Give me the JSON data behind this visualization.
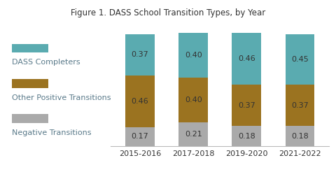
{
  "title": "Figure 1. DASS School Transition Types, by Year",
  "categories": [
    "2015-2016",
    "2017-2018",
    "2019-2020",
    "2021-2022"
  ],
  "series": {
    "Negative Transitions": [
      0.17,
      0.21,
      0.18,
      0.18
    ],
    "Other Positive Transitions": [
      0.46,
      0.4,
      0.37,
      0.37
    ],
    "DASS Completers": [
      0.37,
      0.4,
      0.46,
      0.45
    ]
  },
  "colors": {
    "Negative Transitions": "#aaaaaa",
    "Other Positive Transitions": "#9B7320",
    "DASS Completers": "#5AABB0"
  },
  "legend_order": [
    "DASS Completers",
    "Other Positive Transitions",
    "Negative Transitions"
  ],
  "stack_order": [
    "Negative Transitions",
    "Other Positive Transitions",
    "DASS Completers"
  ],
  "bar_width": 0.55,
  "ylim": [
    0,
    1.12
  ],
  "title_fontsize": 8.5,
  "label_fontsize": 8,
  "legend_fontsize": 8,
  "tick_fontsize": 8,
  "background_color": "#ffffff",
  "text_color": "#333333",
  "legend_text_color": "#5a7a8a"
}
